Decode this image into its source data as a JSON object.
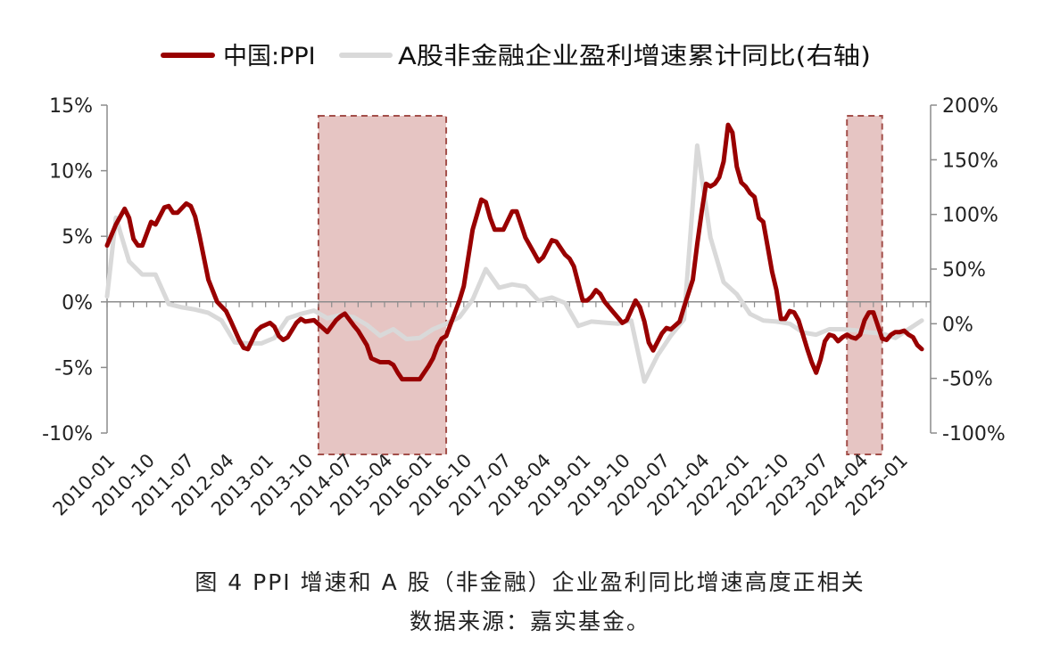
{
  "chart_data": {
    "type": "line",
    "legend": {
      "position": "top-center",
      "items": [
        {
          "label": "中国:PPI",
          "color": "#990000"
        },
        {
          "label": "A股非金融企业盈利增速累计同比(右轴)",
          "color": "#d9d9d9"
        }
      ]
    },
    "x_tick_labels": [
      "2010-01",
      "2010-10",
      "2011-07",
      "2012-04",
      "2013-01",
      "2013-10",
      "2014-07",
      "2015-04",
      "2016-01",
      "2016-10",
      "2017-07",
      "2018-04",
      "2019-01",
      "2019-10",
      "2020-07",
      "2021-04",
      "2022-01",
      "2022-10",
      "2023-07",
      "2024-04",
      "2025-01"
    ],
    "x_range": [
      "2010-01",
      "2025-08"
    ],
    "y_left": {
      "min": -10,
      "max": 15,
      "ticks": [
        15,
        10,
        5,
        0,
        -5,
        -10
      ],
      "tick_labels": [
        "15%",
        "10%",
        "5%",
        "0%",
        "-5%",
        "-10%"
      ]
    },
    "y_right": {
      "min": -100,
      "max": 200,
      "ticks": [
        200,
        150,
        100,
        50,
        0,
        -50,
        -100
      ],
      "tick_labels": [
        "200%",
        "150%",
        "100%",
        "50%",
        "0%",
        "-50%",
        "-100%"
      ]
    },
    "shaded_periods": [
      {
        "start": "2014-01",
        "end": "2016-06"
      },
      {
        "start": "2024-01",
        "end": "2024-09"
      }
    ],
    "series": [
      {
        "name": "中国:PPI",
        "axis": "left",
        "color": "#990000",
        "points": [
          [
            "2010-01",
            4.3
          ],
          [
            "2010-03",
            5.9
          ],
          [
            "2010-05",
            7.1
          ],
          [
            "2010-06",
            6.4
          ],
          [
            "2010-07",
            4.8
          ],
          [
            "2010-08",
            4.3
          ],
          [
            "2010-09",
            4.3
          ],
          [
            "2010-11",
            6.1
          ],
          [
            "2010-12",
            5.9
          ],
          [
            "2011-02",
            7.2
          ],
          [
            "2011-03",
            7.3
          ],
          [
            "2011-04",
            6.8
          ],
          [
            "2011-05",
            6.8
          ],
          [
            "2011-07",
            7.5
          ],
          [
            "2011-08",
            7.3
          ],
          [
            "2011-09",
            6.5
          ],
          [
            "2011-10",
            5.0
          ],
          [
            "2011-12",
            1.7
          ],
          [
            "2012-02",
            0.0
          ],
          [
            "2012-04",
            -0.7
          ],
          [
            "2012-05",
            -1.4
          ],
          [
            "2012-07",
            -2.9
          ],
          [
            "2012-08",
            -3.5
          ],
          [
            "2012-09",
            -3.6
          ],
          [
            "2012-11",
            -2.2
          ],
          [
            "2012-12",
            -1.9
          ],
          [
            "2013-02",
            -1.6
          ],
          [
            "2013-03",
            -1.9
          ],
          [
            "2013-04",
            -2.6
          ],
          [
            "2013-05",
            -2.9
          ],
          [
            "2013-06",
            -2.7
          ],
          [
            "2013-08",
            -1.6
          ],
          [
            "2013-09",
            -1.3
          ],
          [
            "2013-10",
            -1.5
          ],
          [
            "2013-12",
            -1.4
          ],
          [
            "2014-02",
            -2.0
          ],
          [
            "2014-03",
            -2.3
          ],
          [
            "2014-05",
            -1.4
          ],
          [
            "2014-06",
            -1.1
          ],
          [
            "2014-07",
            -0.9
          ],
          [
            "2014-09",
            -1.8
          ],
          [
            "2014-10",
            -2.2
          ],
          [
            "2014-12",
            -3.3
          ],
          [
            "2015-01",
            -4.3
          ],
          [
            "2015-03",
            -4.6
          ],
          [
            "2015-04",
            -4.6
          ],
          [
            "2015-05",
            -4.6
          ],
          [
            "2015-06",
            -4.8
          ],
          [
            "2015-07",
            -5.4
          ],
          [
            "2015-08",
            -5.9
          ],
          [
            "2015-09",
            -5.9
          ],
          [
            "2015-10",
            -5.9
          ],
          [
            "2015-11",
            -5.9
          ],
          [
            "2015-12",
            -5.9
          ],
          [
            "2016-02",
            -4.9
          ],
          [
            "2016-03",
            -4.3
          ],
          [
            "2016-04",
            -3.4
          ],
          [
            "2016-05",
            -2.8
          ],
          [
            "2016-06",
            -2.6
          ],
          [
            "2016-07",
            -1.7
          ],
          [
            "2016-09",
            0.1
          ],
          [
            "2016-10",
            1.2
          ],
          [
            "2016-12",
            5.5
          ],
          [
            "2017-02",
            7.8
          ],
          [
            "2017-03",
            7.6
          ],
          [
            "2017-04",
            6.4
          ],
          [
            "2017-05",
            5.5
          ],
          [
            "2017-06",
            5.5
          ],
          [
            "2017-07",
            5.5
          ],
          [
            "2017-09",
            6.9
          ],
          [
            "2017-10",
            6.9
          ],
          [
            "2017-12",
            4.9
          ],
          [
            "2018-02",
            3.7
          ],
          [
            "2018-03",
            3.1
          ],
          [
            "2018-04",
            3.4
          ],
          [
            "2018-06",
            4.7
          ],
          [
            "2018-07",
            4.6
          ],
          [
            "2018-09",
            3.6
          ],
          [
            "2018-10",
            3.3
          ],
          [
            "2018-11",
            2.7
          ],
          [
            "2019-01",
            0.1
          ],
          [
            "2019-02",
            0.1
          ],
          [
            "2019-03",
            0.4
          ],
          [
            "2019-04",
            0.9
          ],
          [
            "2019-05",
            0.6
          ],
          [
            "2019-06",
            0.0
          ],
          [
            "2019-08",
            -0.8
          ],
          [
            "2019-09",
            -1.2
          ],
          [
            "2019-10",
            -1.6
          ],
          [
            "2019-11",
            -1.4
          ],
          [
            "2020-01",
            0.1
          ],
          [
            "2020-02",
            -0.4
          ],
          [
            "2020-03",
            -1.5
          ],
          [
            "2020-04",
            -3.1
          ],
          [
            "2020-05",
            -3.7
          ],
          [
            "2020-07",
            -2.4
          ],
          [
            "2020-08",
            -2.0
          ],
          [
            "2020-09",
            -2.1
          ],
          [
            "2020-11",
            -1.5
          ],
          [
            "2020-12",
            -0.4
          ],
          [
            "2021-02",
            1.7
          ],
          [
            "2021-03",
            4.4
          ],
          [
            "2021-04",
            6.8
          ],
          [
            "2021-05",
            9.0
          ],
          [
            "2021-06",
            8.8
          ],
          [
            "2021-07",
            9.0
          ],
          [
            "2021-08",
            9.5
          ],
          [
            "2021-09",
            10.7
          ],
          [
            "2021-10",
            13.5
          ],
          [
            "2021-11",
            12.9
          ],
          [
            "2021-12",
            10.3
          ],
          [
            "2022-01",
            9.1
          ],
          [
            "2022-02",
            8.8
          ],
          [
            "2022-03",
            8.3
          ],
          [
            "2022-04",
            8.0
          ],
          [
            "2022-05",
            6.4
          ],
          [
            "2022-06",
            6.1
          ],
          [
            "2022-07",
            4.2
          ],
          [
            "2022-08",
            2.3
          ],
          [
            "2022-09",
            0.9
          ],
          [
            "2022-10",
            -1.3
          ],
          [
            "2022-11",
            -1.3
          ],
          [
            "2022-12",
            -0.7
          ],
          [
            "2023-01",
            -0.8
          ],
          [
            "2023-02",
            -1.4
          ],
          [
            "2023-03",
            -2.5
          ],
          [
            "2023-04",
            -3.6
          ],
          [
            "2023-05",
            -4.6
          ],
          [
            "2023-06",
            -5.4
          ],
          [
            "2023-07",
            -4.4
          ],
          [
            "2023-08",
            -3.0
          ],
          [
            "2023-09",
            -2.5
          ],
          [
            "2023-10",
            -2.6
          ],
          [
            "2023-11",
            -3.0
          ],
          [
            "2023-12",
            -2.7
          ],
          [
            "2024-01",
            -2.5
          ],
          [
            "2024-02",
            -2.7
          ],
          [
            "2024-03",
            -2.8
          ],
          [
            "2024-04",
            -2.5
          ],
          [
            "2024-05",
            -1.4
          ],
          [
            "2024-06",
            -0.8
          ],
          [
            "2024-07",
            -0.8
          ],
          [
            "2024-08",
            -1.8
          ],
          [
            "2024-09",
            -2.8
          ],
          [
            "2024-10",
            -2.9
          ],
          [
            "2024-11",
            -2.5
          ],
          [
            "2024-12",
            -2.3
          ],
          [
            "2025-01",
            -2.3
          ],
          [
            "2025-02",
            -2.2
          ],
          [
            "2025-03",
            -2.5
          ],
          [
            "2025-04",
            -2.7
          ],
          [
            "2025-05",
            -3.3
          ],
          [
            "2025-06",
            -3.6
          ]
        ]
      },
      {
        "name": "A股非金融企业盈利增速累计同比(右轴)",
        "axis": "right",
        "color": "#d9d9d9",
        "points": [
          [
            "2010-01",
            25
          ],
          [
            "2010-03",
            97
          ],
          [
            "2010-06",
            57
          ],
          [
            "2010-09",
            45
          ],
          [
            "2010-12",
            45
          ],
          [
            "2011-03",
            18
          ],
          [
            "2011-06",
            15
          ],
          [
            "2011-09",
            13
          ],
          [
            "2011-12",
            10
          ],
          [
            "2012-03",
            3
          ],
          [
            "2012-06",
            -17
          ],
          [
            "2012-09",
            -18
          ],
          [
            "2012-12",
            -18
          ],
          [
            "2013-03",
            -13
          ],
          [
            "2013-06",
            5
          ],
          [
            "2013-09",
            9
          ],
          [
            "2013-12",
            12
          ],
          [
            "2014-03",
            5
          ],
          [
            "2014-06",
            8
          ],
          [
            "2014-09",
            6
          ],
          [
            "2014-12",
            -1
          ],
          [
            "2015-03",
            -11
          ],
          [
            "2015-06",
            -5
          ],
          [
            "2015-09",
            -14
          ],
          [
            "2015-12",
            -13
          ],
          [
            "2016-03",
            -5
          ],
          [
            "2016-06",
            0
          ],
          [
            "2016-09",
            6
          ],
          [
            "2016-12",
            22
          ],
          [
            "2017-03",
            50
          ],
          [
            "2017-06",
            33
          ],
          [
            "2017-09",
            36
          ],
          [
            "2017-12",
            34
          ],
          [
            "2018-03",
            21
          ],
          [
            "2018-06",
            24
          ],
          [
            "2018-09",
            19
          ],
          [
            "2018-12",
            -2
          ],
          [
            "2019-03",
            2
          ],
          [
            "2019-06",
            1
          ],
          [
            "2019-09",
            0
          ],
          [
            "2019-12",
            3
          ],
          [
            "2020-03",
            -53
          ],
          [
            "2020-06",
            -29
          ],
          [
            "2020-09",
            -11
          ],
          [
            "2020-12",
            4
          ],
          [
            "2021-03",
            163
          ],
          [
            "2021-06",
            79
          ],
          [
            "2021-09",
            38
          ],
          [
            "2021-12",
            27
          ],
          [
            "2022-03",
            9
          ],
          [
            "2022-06",
            3
          ],
          [
            "2022-09",
            2
          ],
          [
            "2022-12",
            0
          ],
          [
            "2023-03",
            -8
          ],
          [
            "2023-06",
            -10
          ],
          [
            "2023-09",
            -5
          ],
          [
            "2023-12",
            -5
          ],
          [
            "2024-03",
            -6
          ],
          [
            "2024-06",
            -8
          ],
          [
            "2024-09",
            -9
          ],
          [
            "2024-12",
            -13
          ],
          [
            "2025-03",
            -5
          ],
          [
            "2025-06",
            3
          ]
        ]
      }
    ]
  },
  "captions": {
    "title": "图 4 PPI 增速和 A 股（非金融）企业盈利同比增速高度正相关",
    "source": "数据来源：嘉实基金。"
  }
}
